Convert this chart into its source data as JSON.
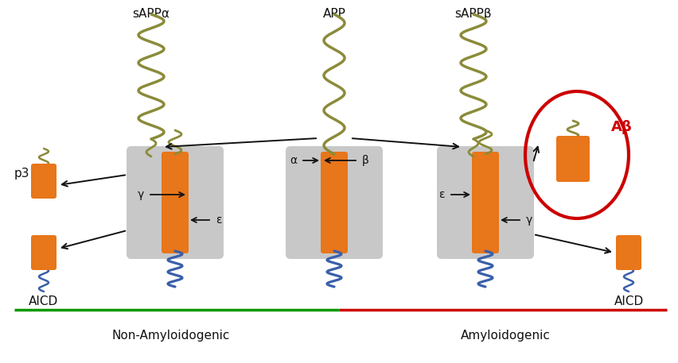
{
  "bg_color": "#ffffff",
  "orange_color": "#E8761A",
  "gray_color": "#C8C8C8",
  "olive_color": "#8B8B3A",
  "blue_color": "#3A5FAA",
  "red_color": "#CC0000",
  "green_color": "#009900",
  "black_color": "#111111",
  "label_sAPPa": "sAPPα",
  "label_APP": "APP",
  "label_sAPPb": "sAPPβ",
  "label_p3": "p3",
  "label_AICD_left": "AICD",
  "label_AICD_right": "AICD",
  "label_Abeta": "Aβ",
  "label_non_amyloid": "Non-Amyloidogenic",
  "label_amyloid": "Amyloidogenic",
  "label_alpha": "α",
  "label_beta": "β",
  "label_gamma_left": "γ",
  "label_epsilon_left": "ε",
  "label_epsilon_right": "ε",
  "label_gamma_right": "γ",
  "figsize": [
    8.52,
    4.57
  ],
  "dpi": 100
}
